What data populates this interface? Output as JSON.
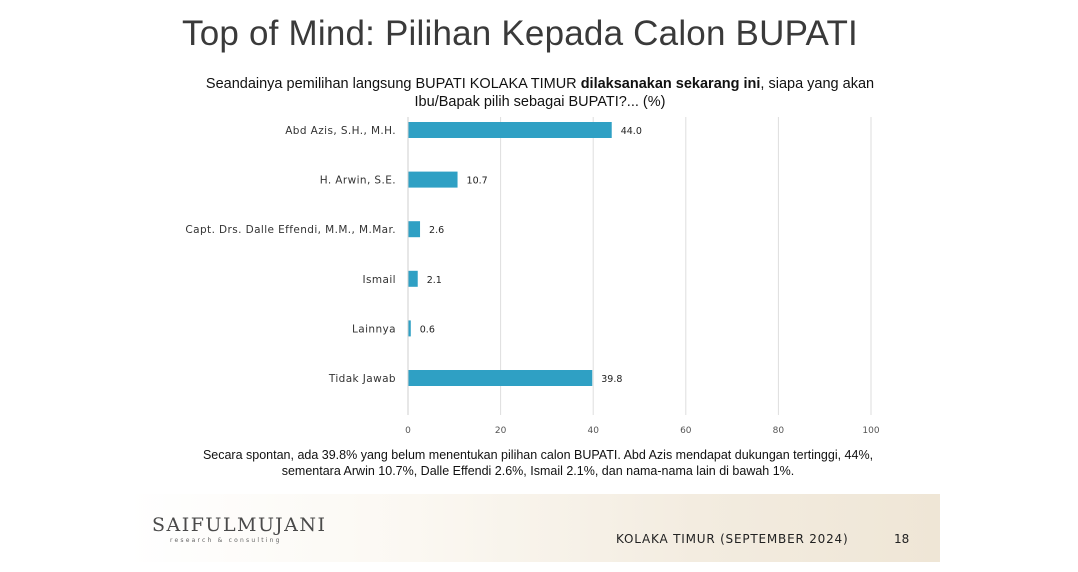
{
  "slide": {
    "title": "Top of Mind: Pilihan Kepada Calon BUPATI",
    "question_pre": "Seandainya pemilihan langsung BUPATI KOLAKA TIMUR ",
    "question_bold": "dilaksanakan sekarang ini",
    "question_post": ", siapa yang akan Ibu/Bapak pilih sebagai BUPATI?... (%)",
    "summary_line1": "Secara spontan, ada 39.8% yang belum menentukan pilihan calon BUPATI. Abd Azis mendapat dukungan tertinggi, 44%,",
    "summary_line2": "sementara Arwin 10.7%, Dalle Effendi 2.6%, Ismail 2.1%, dan nama-nama lain di bawah 1%."
  },
  "footer": {
    "logo_main": "SAIFULMUJANI",
    "logo_sub": "research & consulting",
    "label": "KOLAKA TIMUR (SEPTEMBER 2024)",
    "page": "18"
  },
  "chart_data": {
    "type": "bar",
    "orientation": "horizontal",
    "categories": [
      "Abd Azis, S.H., M.H.",
      "H. Arwin, S.E.",
      "Capt. Drs. Dalle Effendi, M.M., M.Mar.",
      "Ismail",
      "Lainnya",
      "Tidak Jawab"
    ],
    "values": [
      44.0,
      10.7,
      2.6,
      2.1,
      0.6,
      39.8
    ],
    "value_labels": [
      "44.0",
      "10.7",
      "2.6",
      "2.1",
      "0.6",
      "39.8"
    ],
    "xlim": [
      0,
      100
    ],
    "xticks": [
      0,
      20,
      40,
      60,
      80,
      100
    ],
    "grid": true,
    "bar_color": "#2fa0c4"
  }
}
